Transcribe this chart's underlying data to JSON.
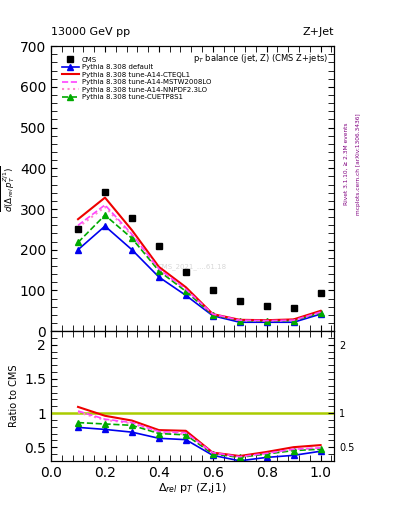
{
  "title_top": "13000 GeV pp",
  "title_right": "Z+Jet",
  "plot_title": "p$_T$ balance (jet, Z) (CMS Z+jets)",
  "xlabel": "$\\Delta_{rel}$ p$_T$ (Z,j1)",
  "ylabel_ratio": "Ratio to CMS",
  "watermark": "CMS_2021_....61.18",
  "right_label1": "Rivet 3.1.10, ≥ 2.3M events",
  "right_label2": "mcplots.cern.ch [arXiv:1306.3436]",
  "x_main": [
    0.1,
    0.2,
    0.3,
    0.4,
    0.5,
    0.6,
    0.7,
    0.8,
    0.9,
    1.0
  ],
  "cms_y": [
    252,
    342,
    278,
    210,
    145,
    100,
    75,
    63,
    58,
    95
  ],
  "pythia_default_y": [
    200,
    258,
    200,
    133,
    88,
    38,
    22,
    22,
    22,
    42
  ],
  "pythia_cteql1_y": [
    275,
    328,
    248,
    158,
    108,
    42,
    28,
    27,
    29,
    50
  ],
  "pythia_mstw2008lo_y": [
    260,
    310,
    238,
    153,
    103,
    42,
    27,
    26,
    27,
    47
  ],
  "pythia_nnpdf23lo_y": [
    255,
    305,
    235,
    150,
    100,
    41,
    27,
    26,
    27,
    46
  ],
  "pythia_cuetp8s1_y": [
    218,
    285,
    228,
    148,
    98,
    40,
    26,
    25,
    26,
    45
  ],
  "ratio_default": [
    0.79,
    0.76,
    0.72,
    0.63,
    0.61,
    0.38,
    0.3,
    0.35,
    0.38,
    0.44
  ],
  "ratio_cteql1": [
    1.09,
    0.96,
    0.89,
    0.75,
    0.74,
    0.42,
    0.37,
    0.43,
    0.5,
    0.53
  ],
  "ratio_mstw2008lo": [
    1.03,
    0.91,
    0.86,
    0.73,
    0.71,
    0.42,
    0.36,
    0.41,
    0.47,
    0.49
  ],
  "ratio_nnpdf23lo": [
    1.01,
    0.9,
    0.85,
    0.71,
    0.69,
    0.41,
    0.36,
    0.41,
    0.47,
    0.48
  ],
  "ratio_cuetp8s1": [
    0.86,
    0.84,
    0.82,
    0.7,
    0.68,
    0.4,
    0.35,
    0.4,
    0.45,
    0.47
  ],
  "color_cms": "black",
  "color_default": "#0000ee",
  "color_cteql1": "#ee0000",
  "color_mstw2008lo": "#ff44ff",
  "color_nnpdf23lo": "#ff88cc",
  "color_cuetp8s1": "#00aa00",
  "ylim_main": [
    0,
    700
  ],
  "ylim_ratio": [
    0.3,
    2.2
  ],
  "xlim": [
    0.0,
    1.05
  ],
  "legend_labels": [
    "CMS",
    "Pythia 8.308 default",
    "Pythia 8.308 tune-A14-CTEQL1",
    "Pythia 8.308 tune-A14-MSTW2008LO",
    "Pythia 8.308 tune-A14-NNPDF2.3LO",
    "Pythia 8.308 tune-CUETP8S1"
  ]
}
